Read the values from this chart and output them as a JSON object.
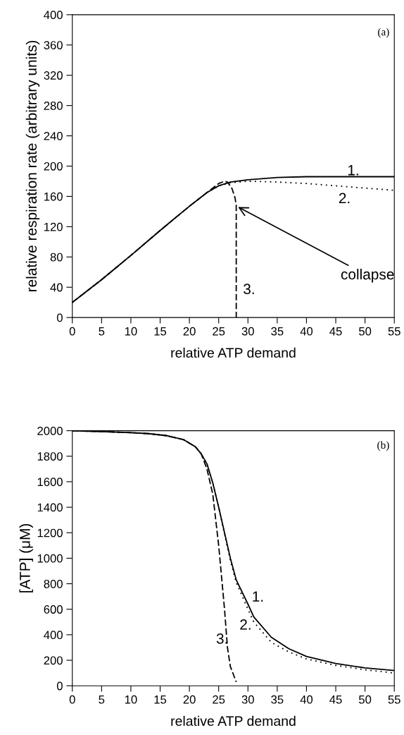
{
  "chart_data": [
    {
      "type": "line",
      "title": "(a)",
      "xlabel": "relative ATP demand",
      "ylabel": "relative respiration rate (arbitrary units)",
      "xlim": [
        0,
        55
      ],
      "xticks": [
        0,
        5,
        10,
        15,
        20,
        25,
        30,
        35,
        40,
        45,
        50,
        55
      ],
      "ylim": [
        0,
        400
      ],
      "yticks": [
        0,
        40,
        80,
        120,
        160,
        200,
        240,
        280,
        320,
        360,
        400
      ],
      "series": [
        {
          "name": "1.",
          "color": "#000000",
          "line_style": "solid",
          "x": [
            0,
            5,
            10,
            15,
            20,
            23,
            25,
            27,
            30,
            35,
            40,
            55
          ],
          "values": [
            20,
            50,
            82,
            115,
            147,
            165,
            174,
            179,
            182,
            185,
            186,
            186
          ]
        },
        {
          "name": "2.",
          "color": "#000000",
          "line_style": "dotted",
          "x": [
            0,
            5,
            10,
            15,
            20,
            23,
            25,
            27,
            30,
            35,
            40,
            45,
            50,
            55
          ],
          "values": [
            20,
            50,
            82,
            115,
            147,
            165,
            174,
            178,
            180,
            179,
            177,
            174,
            171,
            168
          ]
        },
        {
          "name": "3.",
          "color": "#000000",
          "line_style": "dashed",
          "x": [
            0,
            5,
            10,
            15,
            20,
            23,
            25,
            26,
            26.5,
            27.3,
            27.8,
            28,
            28
          ],
          "values": [
            20,
            50,
            82,
            115,
            147,
            165,
            177,
            180,
            179,
            170,
            158,
            148,
            0
          ]
        }
      ],
      "annotations": [
        {
          "text": "collapse",
          "x": 28.3,
          "y": 146
        }
      ]
    },
    {
      "type": "line",
      "title": "(b)",
      "xlabel": "relative ATP demand",
      "ylabel": "[ATP] (μM)",
      "xlim": [
        0,
        55
      ],
      "xticks": [
        0,
        5,
        10,
        15,
        20,
        25,
        30,
        35,
        40,
        45,
        50,
        55
      ],
      "ylim": [
        0,
        2000
      ],
      "yticks": [
        0,
        200,
        400,
        600,
        800,
        1000,
        1200,
        1400,
        1600,
        1800,
        2000
      ],
      "series": [
        {
          "name": "1.",
          "color": "#000000",
          "line_style": "solid",
          "x": [
            0,
            5,
            10,
            13,
            16,
            19,
            21,
            22,
            23,
            24,
            25,
            26,
            27,
            28,
            30,
            31,
            34,
            37,
            40,
            45,
            50,
            55
          ],
          "values": [
            2000,
            1993,
            1985,
            1977,
            1962,
            1930,
            1875,
            1820,
            1740,
            1590,
            1400,
            1200,
            1000,
            830,
            640,
            540,
            380,
            290,
            230,
            175,
            140,
            120
          ]
        },
        {
          "name": "2.",
          "color": "#000000",
          "line_style": "dotted",
          "x": [
            0,
            5,
            10,
            13,
            16,
            19,
            21,
            22,
            23,
            24,
            25,
            26,
            27,
            28,
            30,
            31,
            34,
            37,
            40,
            45,
            50,
            55
          ],
          "values": [
            2000,
            1993,
            1985,
            1977,
            1962,
            1930,
            1875,
            1820,
            1740,
            1590,
            1400,
            1190,
            980,
            810,
            600,
            500,
            340,
            265,
            210,
            160,
            125,
            100
          ]
        },
        {
          "name": "3.",
          "color": "#000000",
          "line_style": "dashed",
          "x": [
            0,
            5,
            10,
            13,
            16,
            19,
            21,
            22,
            23,
            24,
            25,
            26,
            26.5,
            27,
            28
          ],
          "values": [
            2000,
            1993,
            1985,
            1977,
            1962,
            1930,
            1875,
            1820,
            1700,
            1500,
            1100,
            600,
            300,
            150,
            30
          ]
        }
      ]
    }
  ]
}
